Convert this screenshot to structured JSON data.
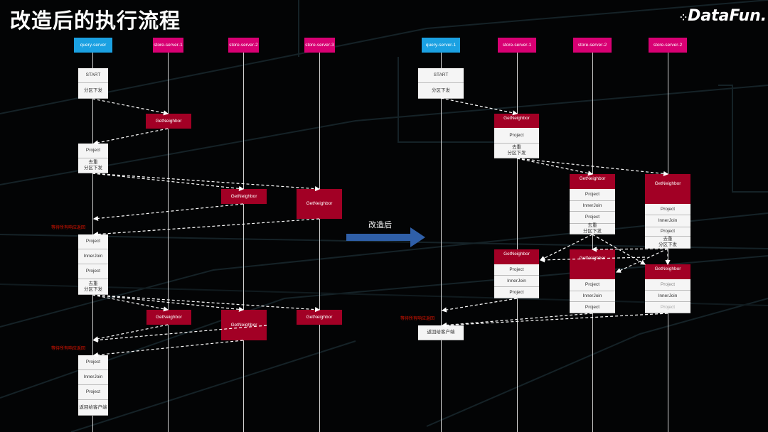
{
  "title": "改造后的执行流程",
  "logo": "DataFun.",
  "transition_label": "改造后",
  "colors": {
    "query_server": "#1ba1e2",
    "store_server": "#d80073",
    "get_neighbor": "#a20025",
    "wait_text": "#e51400",
    "arrow": "#2f5fa8"
  },
  "before": {
    "headers": [
      "query-server",
      "store-server-1",
      "store-server-2",
      "store-server-3"
    ],
    "start_box": [
      "START",
      "分区下发"
    ],
    "get_neighbor": "GetNeighbor",
    "box2": [
      "Project",
      "去重\n分区下发"
    ],
    "wait_text": "等待所有响应返回",
    "box3": [
      "Project",
      "InnerJoin",
      "Project",
      "去重\n分区下发"
    ],
    "box4": [
      "Project",
      "InnerJoin",
      "Project",
      "返回给客户端"
    ]
  },
  "after": {
    "headers": [
      "query-server-1",
      "store-server-1",
      "store-server-2",
      "store-server-2"
    ],
    "start_box": [
      "START",
      "分区下发"
    ],
    "get_neighbor": "GetNeighbor",
    "ss1_block1": [
      "Project",
      "去重\n分区下发"
    ],
    "ss2_block1": [
      "Project",
      "InnerJoin",
      "Project",
      "去重\n分区下发"
    ],
    "ss3_block1": [
      "Project",
      "InnerJoin",
      "Project",
      "去重\n分区下发"
    ],
    "block2": [
      "Project",
      "InnerJoin",
      "Project"
    ],
    "wait_text": "等待所有响应返回",
    "return_box": "返回给客户端"
  }
}
